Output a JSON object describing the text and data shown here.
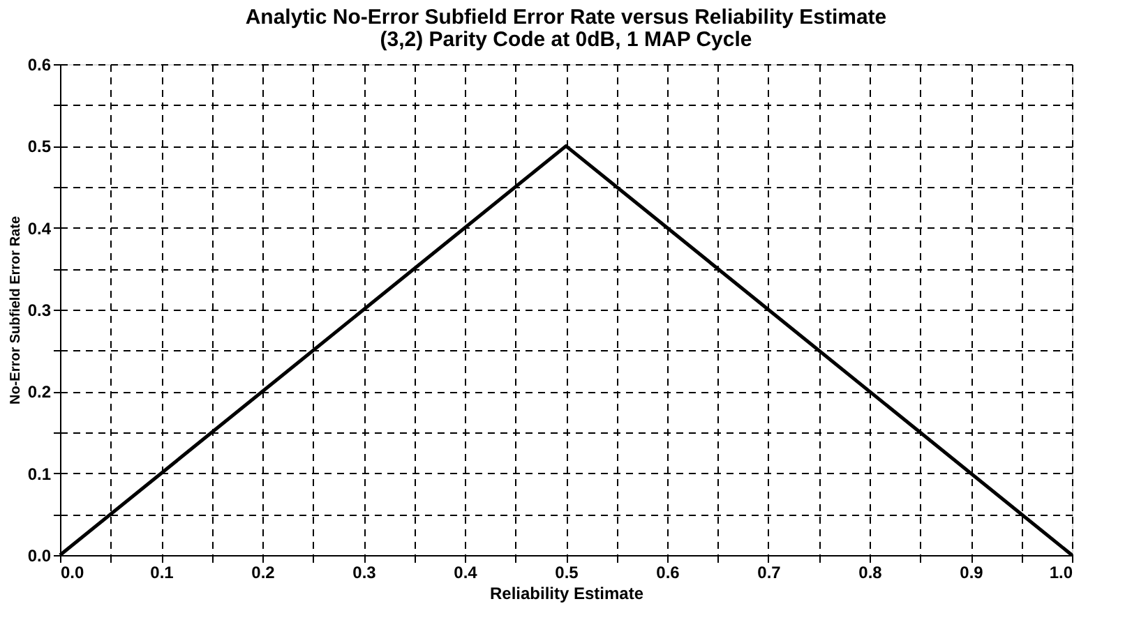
{
  "chart_data": {
    "type": "line",
    "title": "Analytic No-Error Subfield Error Rate versus Reliability Estimate",
    "subtitle": "(3,2) Parity Code at 0dB, 1 MAP Cycle",
    "xlabel": "Reliability Estimate",
    "ylabel": "No-Error Subfield Error Rate",
    "x": [
      0.0,
      0.5,
      1.0
    ],
    "series": [
      {
        "color": "#000000",
        "values": [
          0.0,
          0.5,
          0.0
        ]
      }
    ],
    "xlim": [
      0.0,
      1.0
    ],
    "ylim": [
      0.0,
      0.6
    ],
    "xticks": [
      {
        "value": 0.0,
        "label": "0.0"
      },
      {
        "value": 0.05,
        "label": null
      },
      {
        "value": 0.1,
        "label": "0.1"
      },
      {
        "value": 0.15,
        "label": null
      },
      {
        "value": 0.2,
        "label": "0.2"
      },
      {
        "value": 0.25,
        "label": null
      },
      {
        "value": 0.3,
        "label": "0.3"
      },
      {
        "value": 0.35,
        "label": null
      },
      {
        "value": 0.4,
        "label": "0.4"
      },
      {
        "value": 0.45,
        "label": null
      },
      {
        "value": 0.5,
        "label": "0.5"
      },
      {
        "value": 0.55,
        "label": null
      },
      {
        "value": 0.6,
        "label": "0.6"
      },
      {
        "value": 0.65,
        "label": null
      },
      {
        "value": 0.7,
        "label": "0.7"
      },
      {
        "value": 0.75,
        "label": null
      },
      {
        "value": 0.8,
        "label": "0.8"
      },
      {
        "value": 0.85,
        "label": null
      },
      {
        "value": 0.9,
        "label": "0.9"
      },
      {
        "value": 0.95,
        "label": null
      },
      {
        "value": 1.0,
        "label": "1.0"
      }
    ],
    "yticks": [
      {
        "value": 0.0,
        "label": "0.0"
      },
      {
        "value": 0.05,
        "label": null
      },
      {
        "value": 0.1,
        "label": "0.1"
      },
      {
        "value": 0.15,
        "label": null
      },
      {
        "value": 0.2,
        "label": "0.2"
      },
      {
        "value": 0.25,
        "label": null
      },
      {
        "value": 0.3,
        "label": "0.3"
      },
      {
        "value": 0.35,
        "label": null
      },
      {
        "value": 0.4,
        "label": "0.4"
      },
      {
        "value": 0.45,
        "label": null
      },
      {
        "value": 0.5,
        "label": "0.5"
      },
      {
        "value": 0.55,
        "label": null
      },
      {
        "value": 0.6,
        "label": "0.6"
      }
    ],
    "grid": true,
    "marker": "none",
    "line_style": "solid",
    "legend": false
  }
}
